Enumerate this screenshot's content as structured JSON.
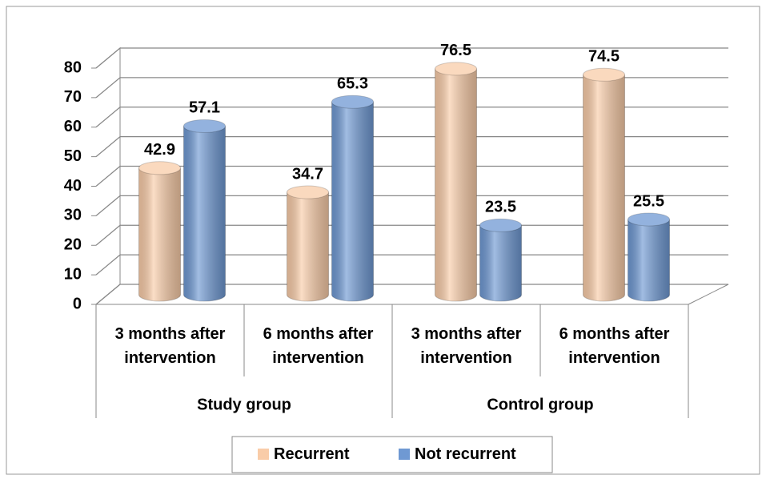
{
  "chart_data": {
    "type": "bar3d",
    "categories": [
      "3 months after intervention",
      "6 months after intervention",
      "3 months after intervention",
      "6 months after intervention"
    ],
    "groups": [
      {
        "name": "Study group",
        "span": 2
      },
      {
        "name": "Control group",
        "span": 2
      }
    ],
    "series": [
      {
        "name": "Recurrent",
        "color": "#f9cca8",
        "values": [
          42.9,
          34.7,
          76.5,
          74.5
        ]
      },
      {
        "name": "Not recurrent",
        "color": "#6f99d3",
        "values": [
          57.1,
          65.3,
          23.5,
          25.5
        ]
      }
    ],
    "ylim": [
      0,
      80
    ],
    "yticks": [
      0,
      10,
      20,
      30,
      40,
      50,
      60,
      70,
      80
    ],
    "grid": true,
    "legend": "bottom"
  }
}
